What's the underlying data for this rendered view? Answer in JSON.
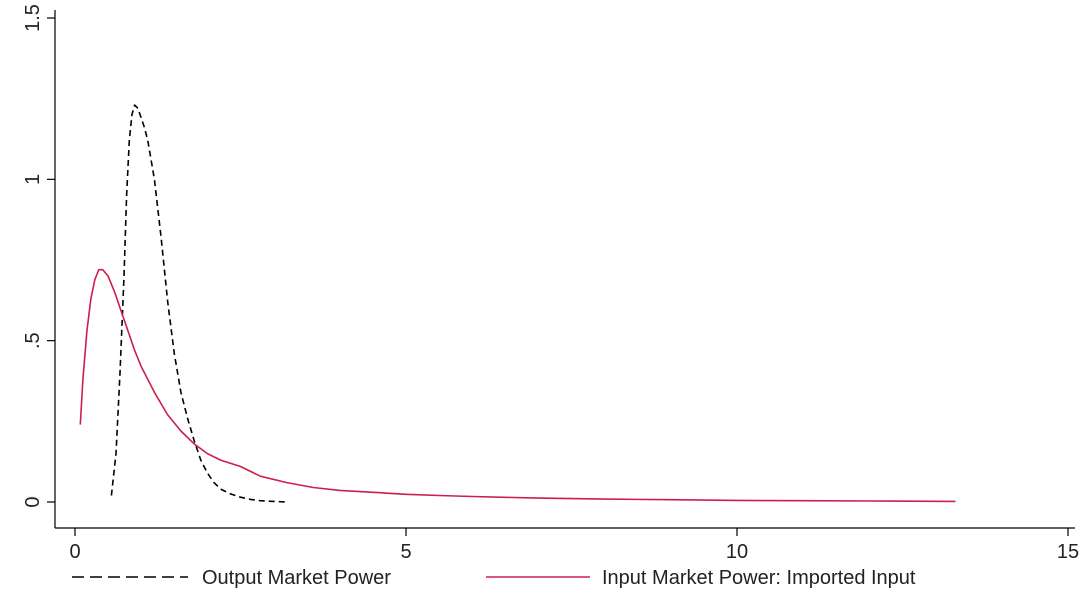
{
  "chart_data": {
    "type": "line",
    "title": "",
    "xlabel": "",
    "ylabel": "",
    "xlim": [
      0,
      15
    ],
    "ylim": [
      0,
      1.5
    ],
    "xticks": [
      0,
      5,
      10,
      15
    ],
    "xtick_labels": [
      "0",
      "5",
      "10",
      "15"
    ],
    "yticks": [
      0,
      0.5,
      1,
      1.5
    ],
    "ytick_labels": [
      "0",
      ".5",
      "1",
      "1.5"
    ],
    "grid": false,
    "legend": "bottom",
    "series": [
      {
        "name": "Output Market Power",
        "color": "#000000",
        "style": "dashed",
        "x": [
          0.55,
          0.62,
          0.68,
          0.74,
          0.78,
          0.82,
          0.86,
          0.9,
          0.95,
          1.0,
          1.05,
          1.1,
          1.2,
          1.3,
          1.4,
          1.5,
          1.6,
          1.7,
          1.8,
          1.9,
          2.0,
          2.1,
          2.2,
          2.35,
          2.5,
          2.65,
          2.8,
          3.0,
          3.2
        ],
        "y": [
          0.02,
          0.15,
          0.4,
          0.7,
          0.95,
          1.12,
          1.2,
          1.23,
          1.22,
          1.19,
          1.16,
          1.12,
          1.0,
          0.82,
          0.62,
          0.46,
          0.34,
          0.26,
          0.19,
          0.13,
          0.09,
          0.06,
          0.04,
          0.025,
          0.015,
          0.008,
          0.004,
          0.002,
          0.0
        ]
      },
      {
        "name": "Input Market Power: Imported Input",
        "color": "#cc1f4a",
        "style": "solid",
        "x": [
          0.08,
          0.12,
          0.18,
          0.24,
          0.3,
          0.36,
          0.42,
          0.5,
          0.6,
          0.7,
          0.8,
          0.9,
          1.0,
          1.2,
          1.4,
          1.6,
          1.8,
          2.0,
          2.2,
          2.5,
          2.8,
          3.2,
          3.6,
          4.0,
          4.5,
          5.0,
          5.5,
          6.0,
          7.0,
          8.0,
          9.0,
          10.0,
          11.0,
          12.0,
          13.3
        ],
        "y": [
          0.24,
          0.38,
          0.53,
          0.63,
          0.69,
          0.72,
          0.72,
          0.7,
          0.65,
          0.59,
          0.53,
          0.47,
          0.42,
          0.34,
          0.27,
          0.22,
          0.18,
          0.15,
          0.13,
          0.11,
          0.08,
          0.06,
          0.045,
          0.036,
          0.03,
          0.024,
          0.02,
          0.017,
          0.012,
          0.009,
          0.007,
          0.005,
          0.004,
          0.003,
          0.002
        ]
      }
    ]
  }
}
